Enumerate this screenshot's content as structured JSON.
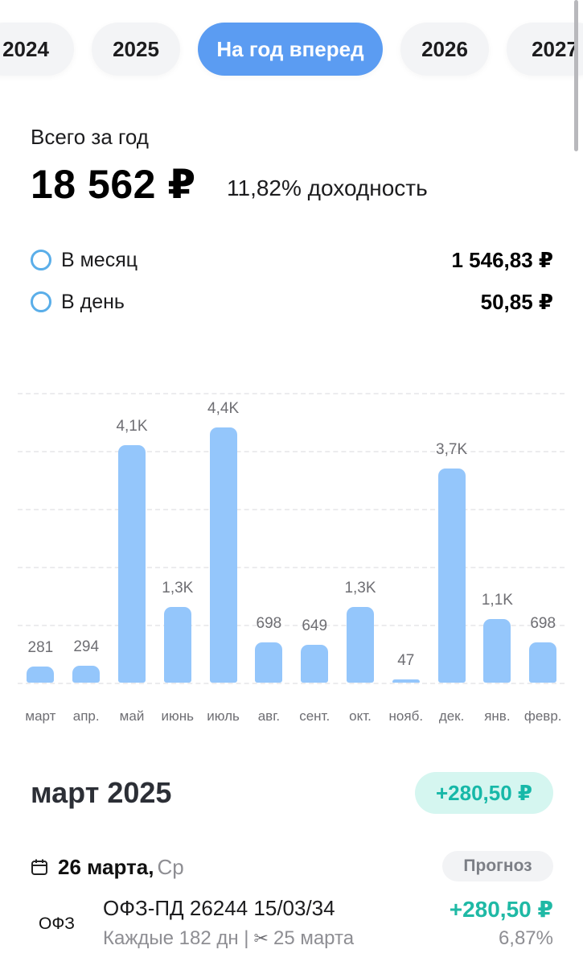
{
  "tabs": [
    {
      "label": "2024",
      "active": false
    },
    {
      "label": "2025",
      "active": false
    },
    {
      "label": "На год вперед",
      "active": true
    },
    {
      "label": "2026",
      "active": false
    },
    {
      "label": "2027",
      "active": false
    }
  ],
  "summary": {
    "label": "Всего за год",
    "total": "18 562 ₽",
    "yield": "11,82% доходность"
  },
  "stats": [
    {
      "label": "В месяц",
      "value": "1 546,83 ₽"
    },
    {
      "label": "В день",
      "value": "50,85 ₽"
    }
  ],
  "colors": {
    "accent": "#5b9cf2",
    "bar": "#94c6fb",
    "positive": "#1fb9a5",
    "positive_bg": "#d5f6f0",
    "dot": "#5aaee9"
  },
  "chart_data": {
    "type": "bar",
    "categories": [
      "март",
      "апр.",
      "май",
      "июнь",
      "июль",
      "авг.",
      "сент.",
      "окт.",
      "нояб.",
      "дек.",
      "янв.",
      "февр."
    ],
    "values": [
      281,
      294,
      4100,
      1300,
      4400,
      698,
      649,
      1300,
      47,
      3700,
      1100,
      698
    ],
    "value_labels": [
      "281",
      "294",
      "4,1K",
      "1,3K",
      "4,4K",
      "698",
      "649",
      "1,3K",
      "47",
      "3,7K",
      "1,1K",
      "698"
    ],
    "ylim": [
      0,
      5000
    ],
    "grid": true
  },
  "month_section": {
    "title": "март 2025",
    "badge": "+280,50 ₽",
    "date_strong": "26 марта,",
    "weekday": "Ср",
    "status": "Прогноз",
    "payment": {
      "logo": "ОФЗ",
      "name": "ОФЗ-ПД 26244 15/03/34",
      "amount": "+280,50 ₽",
      "period": "Каждые 182 дн |",
      "cut_date": "25 марта",
      "yield": "6,87%"
    }
  },
  "icons": {
    "calendar": "calendar-icon",
    "scissors": "scissors-icon"
  }
}
